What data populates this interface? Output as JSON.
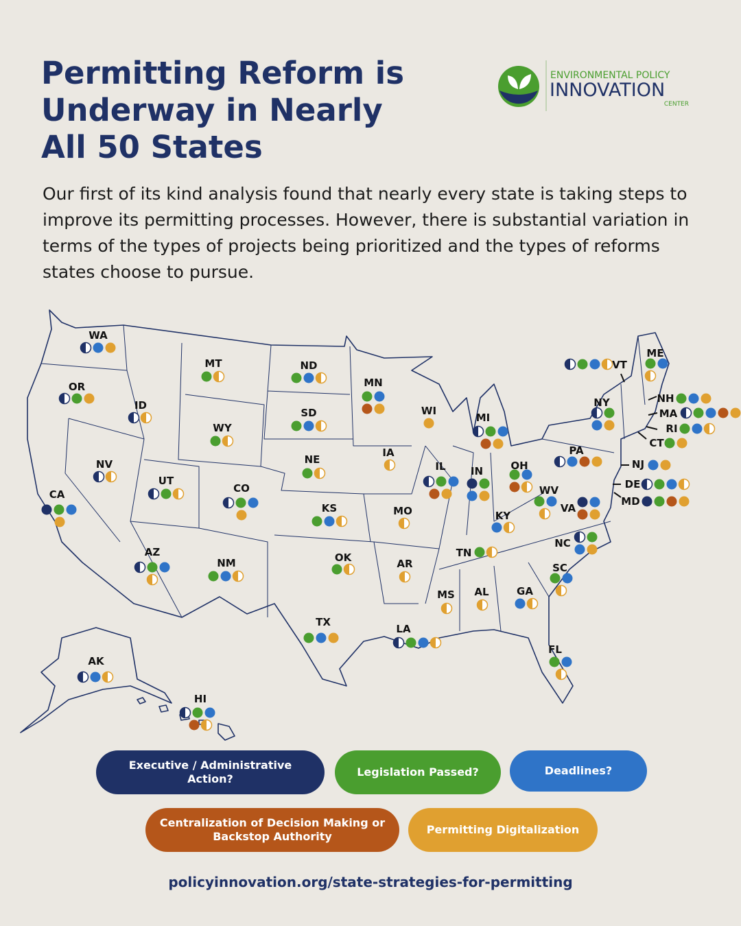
{
  "header": {
    "title_lines": [
      "Permitting Reform is",
      "Underway in Nearly",
      "All 50 States"
    ],
    "intro": "Our first of its kind analysis found that nearly every state is taking steps to improve its permitting processes. However, there is substantial variation in terms of the types of projects being prioritized and the types of reforms states choose to pursue.",
    "logo": {
      "line1": "ENVIRONMENTAL POLICY",
      "line2": "INNOVATION",
      "line3": "CENTER"
    }
  },
  "legend": {
    "items": [
      {
        "label": "Executive / Administrative Action?",
        "color": "#1f3166"
      },
      {
        "label": "Legislation Passed?",
        "color": "#4a9e2f"
      },
      {
        "label": "Deadlines?",
        "color": "#2f74c8"
      },
      {
        "label": "Centralization of Decision Making or Backstop Authority",
        "color": "#b5561a"
      },
      {
        "label": "Permitting Digitalization",
        "color": "#e0a030"
      }
    ]
  },
  "states": [
    {
      "name": "WA",
      "dots": [
        [
          0,
          0.5
        ],
        [
          2,
          1
        ],
        [
          4,
          1
        ]
      ]
    },
    {
      "name": "OR",
      "dots": [
        [
          0,
          0.5
        ],
        [
          1,
          1
        ],
        [
          4,
          1
        ]
      ]
    },
    {
      "name": "CA",
      "dots": [
        [
          0,
          1
        ],
        [
          1,
          1
        ],
        [
          2,
          1
        ],
        [
          4,
          1
        ]
      ]
    },
    {
      "name": "ID",
      "dots": [
        [
          0,
          0.5
        ],
        [
          4,
          0.5
        ]
      ]
    },
    {
      "name": "NV",
      "dots": [
        [
          0,
          0.5
        ],
        [
          4,
          0.5
        ]
      ]
    },
    {
      "name": "MT",
      "dots": [
        [
          1,
          1
        ],
        [
          4,
          0.5
        ]
      ]
    },
    {
      "name": "WY",
      "dots": [
        [
          1,
          1
        ],
        [
          4,
          0.5
        ]
      ]
    },
    {
      "name": "UT",
      "dots": [
        [
          0,
          0.5
        ],
        [
          1,
          1
        ],
        [
          4,
          0.5
        ]
      ]
    },
    {
      "name": "CO",
      "dots": [
        [
          0,
          0.5
        ],
        [
          1,
          1
        ],
        [
          2,
          1
        ],
        [
          4,
          1
        ]
      ]
    },
    {
      "name": "AZ",
      "dots": [
        [
          0,
          0.5
        ],
        [
          1,
          1
        ],
        [
          2,
          1
        ],
        [
          4,
          0.5
        ]
      ]
    },
    {
      "name": "NM",
      "dots": [
        [
          1,
          1
        ],
        [
          2,
          1
        ],
        [
          4,
          0.5
        ]
      ]
    },
    {
      "name": "ND",
      "dots": [
        [
          1,
          1
        ],
        [
          2,
          1
        ],
        [
          4,
          0.5
        ]
      ]
    },
    {
      "name": "SD",
      "dots": [
        [
          1,
          1
        ],
        [
          2,
          1
        ],
        [
          4,
          0.5
        ]
      ]
    },
    {
      "name": "NE",
      "dots": [
        [
          1,
          1
        ],
        [
          4,
          0.5
        ]
      ]
    },
    {
      "name": "KS",
      "dots": [
        [
          1,
          1
        ],
        [
          2,
          1
        ],
        [
          4,
          0.5
        ]
      ]
    },
    {
      "name": "OK",
      "dots": [
        [
          1,
          1
        ],
        [
          4,
          0.5
        ]
      ]
    },
    {
      "name": "TX",
      "dots": [
        [
          1,
          1
        ],
        [
          2,
          1
        ],
        [
          4,
          1
        ]
      ]
    },
    {
      "name": "MN",
      "dots": [
        [
          1,
          1
        ],
        [
          2,
          1
        ],
        [
          3,
          1
        ],
        [
          4,
          1
        ]
      ]
    },
    {
      "name": "IA",
      "dots": [
        [
          4,
          0.5
        ]
      ]
    },
    {
      "name": "MO",
      "dots": [
        [
          4,
          0.5
        ]
      ]
    },
    {
      "name": "AR",
      "dots": [
        [
          4,
          0.5
        ]
      ]
    },
    {
      "name": "LA",
      "dots": [
        [
          0,
          0.5
        ],
        [
          1,
          1
        ],
        [
          2,
          1
        ],
        [
          4,
          0.5
        ]
      ]
    },
    {
      "name": "WI",
      "dots": [
        [
          4,
          1
        ]
      ]
    },
    {
      "name": "IL",
      "dots": [
        [
          0,
          0.5
        ],
        [
          1,
          1
        ],
        [
          2,
          1
        ],
        [
          3,
          1
        ],
        [
          4,
          1
        ]
      ]
    },
    {
      "name": "MI",
      "dots": [
        [
          0,
          0.5
        ],
        [
          1,
          1
        ],
        [
          2,
          1
        ],
        [
          3,
          1
        ],
        [
          4,
          1
        ]
      ]
    },
    {
      "name": "IN",
      "dots": [
        [
          0,
          1
        ],
        [
          1,
          1
        ],
        [
          2,
          1
        ],
        [
          4,
          1
        ]
      ]
    },
    {
      "name": "OH",
      "dots": [
        [
          1,
          1
        ],
        [
          2,
          1
        ],
        [
          3,
          1
        ],
        [
          4,
          0.5
        ]
      ]
    },
    {
      "name": "KY",
      "dots": [
        [
          2,
          1
        ],
        [
          4,
          0.5
        ]
      ]
    },
    {
      "name": "TN",
      "dots": [
        [
          1,
          1
        ],
        [
          4,
          0.5
        ]
      ]
    },
    {
      "name": "MS",
      "dots": [
        [
          4,
          0.5
        ]
      ]
    },
    {
      "name": "AL",
      "dots": [
        [
          4,
          0.5
        ]
      ]
    },
    {
      "name": "GA",
      "dots": [
        [
          2,
          1
        ],
        [
          4,
          0.5
        ]
      ]
    },
    {
      "name": "FL",
      "dots": [
        [
          1,
          1
        ],
        [
          2,
          1
        ],
        [
          4,
          0.5
        ]
      ]
    },
    {
      "name": "SC",
      "dots": [
        [
          1,
          1
        ],
        [
          2,
          1
        ],
        [
          4,
          0.5
        ]
      ]
    },
    {
      "name": "NC",
      "dots": [
        [
          0,
          0.5
        ],
        [
          1,
          1
        ],
        [
          2,
          1
        ],
        [
          4,
          1
        ]
      ]
    },
    {
      "name": "WV",
      "dots": [
        [
          1,
          1
        ],
        [
          2,
          1
        ],
        [
          4,
          0.5
        ]
      ]
    },
    {
      "name": "VA",
      "dots": [
        [
          0,
          1
        ],
        [
          2,
          1
        ],
        [
          3,
          1
        ],
        [
          4,
          1
        ]
      ]
    },
    {
      "name": "PA",
      "dots": [
        [
          0,
          0.5
        ],
        [
          2,
          1
        ],
        [
          3,
          1
        ],
        [
          4,
          1
        ]
      ]
    },
    {
      "name": "NY",
      "dots": [
        [
          0,
          0.5
        ],
        [
          1,
          1
        ],
        [
          2,
          1
        ],
        [
          4,
          1
        ]
      ]
    },
    {
      "name": "VT",
      "dots": [
        [
          0,
          0.5
        ],
        [
          1,
          1
        ],
        [
          2,
          1
        ],
        [
          4,
          0.5
        ]
      ]
    },
    {
      "name": "ME",
      "dots": [
        [
          1,
          1
        ],
        [
          2,
          1
        ],
        [
          4,
          0.5
        ]
      ]
    },
    {
      "name": "NH",
      "dots": [
        [
          1,
          1
        ],
        [
          2,
          1
        ],
        [
          4,
          1
        ]
      ]
    },
    {
      "name": "MA",
      "dots": [
        [
          0,
          0.5
        ],
        [
          1,
          1
        ],
        [
          2,
          1
        ],
        [
          3,
          1
        ],
        [
          4,
          1
        ]
      ]
    },
    {
      "name": "RI",
      "dots": [
        [
          1,
          1
        ],
        [
          2,
          1
        ],
        [
          4,
          0.5
        ]
      ]
    },
    {
      "name": "CT",
      "dots": [
        [
          1,
          1
        ],
        [
          4,
          1
        ]
      ]
    },
    {
      "name": "NJ",
      "dots": [
        [
          2,
          1
        ],
        [
          4,
          1
        ]
      ]
    },
    {
      "name": "DE",
      "dots": [
        [
          0,
          0.5
        ],
        [
          1,
          1
        ],
        [
          2,
          1
        ],
        [
          4,
          0.5
        ]
      ]
    },
    {
      "name": "MD",
      "dots": [
        [
          0,
          1
        ],
        [
          1,
          1
        ],
        [
          3,
          1
        ],
        [
          4,
          1
        ]
      ]
    },
    {
      "name": "AK",
      "dots": [
        [
          0,
          0.5
        ],
        [
          2,
          1
        ],
        [
          4,
          0.5
        ]
      ]
    },
    {
      "name": "HI",
      "dots": [
        [
          0,
          0.5
        ],
        [
          1,
          1
        ],
        [
          2,
          1
        ],
        [
          3,
          1
        ],
        [
          4,
          0.5
        ]
      ]
    }
  ],
  "url": "policyinnovation.org/state-strategies-for-permitting"
}
